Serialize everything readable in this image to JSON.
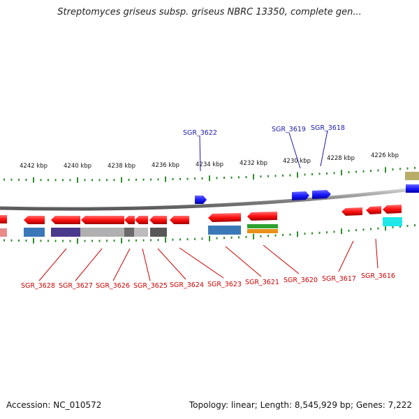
{
  "title": "Streptomyces griseus subsp. griseus NBRC 13350, complete gen...",
  "footer": {
    "accession": "Accession: NC_010572",
    "summary": "Topology: linear; Length: 8,545,929 bp; Genes: 7,222"
  },
  "colors": {
    "forward_gene": "#1a1aff",
    "reverse_gene": "#ff1a1a",
    "forward_label": "#1a1aaa",
    "reverse_label": "#cc0000",
    "tick": "#2e8b2e",
    "backbone": "#8c8c8c"
  },
  "ruler": {
    "unit": "kbp",
    "labels": [
      {
        "pos_kbp": 4242,
        "text": "4242 kbp"
      },
      {
        "pos_kbp": 4240,
        "text": "4240 kbp"
      },
      {
        "pos_kbp": 4238,
        "text": "4238 kbp"
      },
      {
        "pos_kbp": 4236,
        "text": "4236 kbp"
      },
      {
        "pos_kbp": 4234,
        "text": "4234 kbp"
      },
      {
        "pos_kbp": 4232,
        "text": "4232 kbp"
      },
      {
        "pos_kbp": 4230,
        "text": "4230 kbp"
      },
      {
        "pos_kbp": 4228,
        "text": "4228 kbp"
      },
      {
        "pos_kbp": 4226,
        "text": "4226 kbp"
      }
    ]
  },
  "forward_genes": [
    {
      "label": "SGR_3622"
    },
    {
      "label": "SGR_3619"
    },
    {
      "label": "SGR_3618"
    }
  ],
  "reverse_genes": [
    {
      "label": "SGR_3628"
    },
    {
      "label": "SGR_3627"
    },
    {
      "label": "SGR_3626"
    },
    {
      "label": "SGR_3625"
    },
    {
      "label": "SGR_3624"
    },
    {
      "label": "SGR_3623"
    },
    {
      "label": "SGR_3621"
    },
    {
      "label": "SGR_3620"
    },
    {
      "label": "SGR_3617"
    },
    {
      "label": "SGR_3616"
    }
  ]
}
